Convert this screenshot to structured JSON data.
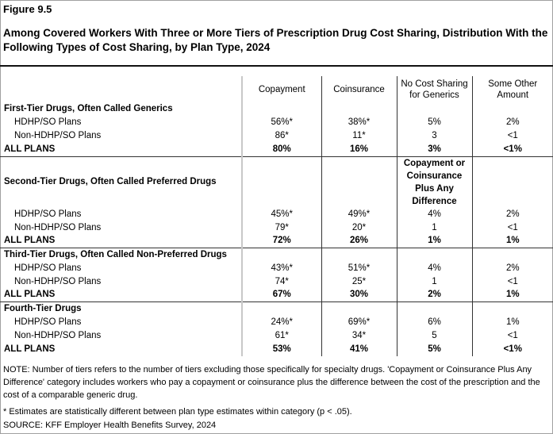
{
  "figure_label": "Figure 9.5",
  "title": "Among Covered Workers With Three or More Tiers of Prescription Drug Cost Sharing, Distribution With the Following Types of Cost Sharing, by Plan Type, 2024",
  "columns": [
    "Copayment",
    "Coinsurance",
    "No Cost Sharing for Generics",
    "Some Other Amount"
  ],
  "sections": [
    {
      "label": "First-Tier Drugs, Often Called Generics",
      "col3_header": "",
      "rows": [
        {
          "label": "HDHP/SO Plans",
          "values": [
            "56%*",
            "38%*",
            "5%",
            "2%"
          ]
        },
        {
          "label": "Non-HDHP/SO Plans",
          "values": [
            "86*",
            "11*",
            "3",
            "<1"
          ]
        },
        {
          "label": "ALL PLANS",
          "values": [
            "80%",
            "16%",
            "3%",
            "<1%"
          ]
        }
      ]
    },
    {
      "label": "Second-Tier Drugs, Often Called Preferred Drugs",
      "col3_header": "Copayment or Coinsurance Plus Any Difference",
      "rows": [
        {
          "label": "HDHP/SO Plans",
          "values": [
            "45%*",
            "49%*",
            "4%",
            "2%"
          ]
        },
        {
          "label": "Non-HDHP/SO Plans",
          "values": [
            "79*",
            "20*",
            "1",
            "<1"
          ]
        },
        {
          "label": "ALL PLANS",
          "values": [
            "72%",
            "26%",
            "1%",
            "1%"
          ]
        }
      ]
    },
    {
      "label": "Third-Tier Drugs, Often Called Non-Preferred Drugs",
      "col3_header": "",
      "rows": [
        {
          "label": "HDHP/SO Plans",
          "values": [
            "43%*",
            "51%*",
            "4%",
            "2%"
          ]
        },
        {
          "label": "Non-HDHP/SO Plans",
          "values": [
            "74*",
            "25*",
            "1",
            "<1"
          ]
        },
        {
          "label": "ALL PLANS",
          "values": [
            "67%",
            "30%",
            "2%",
            "1%"
          ]
        }
      ]
    },
    {
      "label": "Fourth-Tier Drugs",
      "col3_header": "",
      "rows": [
        {
          "label": "HDHP/SO Plans",
          "values": [
            "24%*",
            "69%*",
            "6%",
            "1%"
          ]
        },
        {
          "label": "Non-HDHP/SO Plans",
          "values": [
            "61*",
            "34*",
            "5",
            "<1"
          ]
        },
        {
          "label": "ALL PLANS",
          "values": [
            "53%",
            "41%",
            "5%",
            "<1%"
          ]
        }
      ]
    }
  ],
  "note": "NOTE: Number of tiers refers to the number of tiers excluding those specifically for specialty drugs. 'Copayment or Coinsurance Plus Any Difference' category includes workers who pay a copayment or coinsurance plus the difference between the cost of the prescription and the cost of a comparable generic drug.",
  "footnote": "* Estimates are statistically different between plan type estimates within category (p < .05).",
  "source": "SOURCE: KFF Employer Health Benefits Survey, 2024"
}
